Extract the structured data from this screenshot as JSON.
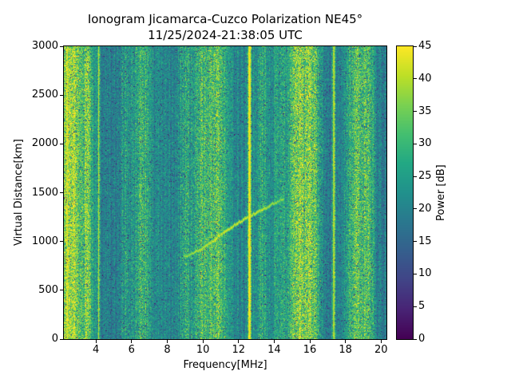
{
  "chart_data": {
    "type": "heatmap",
    "title": "Ionogram Jicamarca-Cuzco Polarization NE45°",
    "subtitle": "11/25/2024-21:38:05 UTC",
    "xlabel": "Frequency[MHz]",
    "ylabel": "Virtual Distance[km]",
    "xlim": [
      2.2,
      20.3
    ],
    "ylim": [
      0,
      3000
    ],
    "xticks": [
      4,
      6,
      8,
      10,
      12,
      14,
      16,
      18,
      20
    ],
    "yticks": [
      0,
      500,
      1000,
      1500,
      2000,
      2500,
      3000
    ],
    "colorbar": {
      "label": "Power [dB]",
      "min": 0,
      "max": 45,
      "ticks": [
        0,
        5,
        10,
        15,
        20,
        25,
        30,
        35,
        40,
        45
      ],
      "colormap": "viridis",
      "colormap_stops": [
        "#440154",
        "#482475",
        "#414487",
        "#355f8d",
        "#2a788e",
        "#21918c",
        "#22a884",
        "#44bf70",
        "#7ad151",
        "#bddf26",
        "#fde725"
      ]
    },
    "noise_model": {
      "seed": 42,
      "background_db": 21,
      "column_stripe_db": 3,
      "pixel_spread_db": 9,
      "band_extra_spread_db": 8,
      "dark_speckle_prob": 0.028,
      "dark_speckle_db": [
        2,
        12
      ],
      "rfi_bands": [
        {
          "freq": 2.35,
          "sigma": 0.18,
          "peak": 16
        },
        {
          "freq": 2.8,
          "sigma": 0.22,
          "peak": 15
        },
        {
          "freq": 3.5,
          "sigma": 0.2,
          "peak": 13
        },
        {
          "freq": 4.15,
          "sigma": 0.035,
          "peak": 20
        },
        {
          "freq": 5.7,
          "sigma": 0.25,
          "peak": 6
        },
        {
          "freq": 6.6,
          "sigma": 0.3,
          "peak": 9
        },
        {
          "freq": 9.0,
          "sigma": 0.25,
          "peak": 8
        },
        {
          "freq": 9.9,
          "sigma": 0.3,
          "peak": 9
        },
        {
          "freq": 10.8,
          "sigma": 0.35,
          "peak": 10
        },
        {
          "freq": 12.62,
          "sigma": 0.06,
          "peak": 26
        },
        {
          "freq": 13.3,
          "sigma": 0.25,
          "peak": 6
        },
        {
          "freq": 14.4,
          "sigma": 0.2,
          "peak": 5
        },
        {
          "freq": 15.3,
          "sigma": 0.3,
          "peak": 14
        },
        {
          "freq": 16.1,
          "sigma": 0.35,
          "peak": 16
        },
        {
          "freq": 17.35,
          "sigma": 0.05,
          "peak": 22
        },
        {
          "freq": 18.6,
          "sigma": 0.35,
          "peak": 11
        },
        {
          "freq": 19.3,
          "sigma": 0.25,
          "peak": 9
        }
      ],
      "echo_trace": {
        "power_db": 43,
        "points": [
          [
            8.9,
            845
          ],
          [
            9.4,
            880
          ],
          [
            10.0,
            935
          ],
          [
            10.5,
            1000
          ],
          [
            11.0,
            1070
          ],
          [
            11.5,
            1135
          ],
          [
            12.0,
            1195
          ],
          [
            12.5,
            1250
          ],
          [
            13.0,
            1300
          ],
          [
            13.5,
            1345
          ],
          [
            14.0,
            1395
          ],
          [
            14.55,
            1445
          ]
        ]
      }
    }
  }
}
